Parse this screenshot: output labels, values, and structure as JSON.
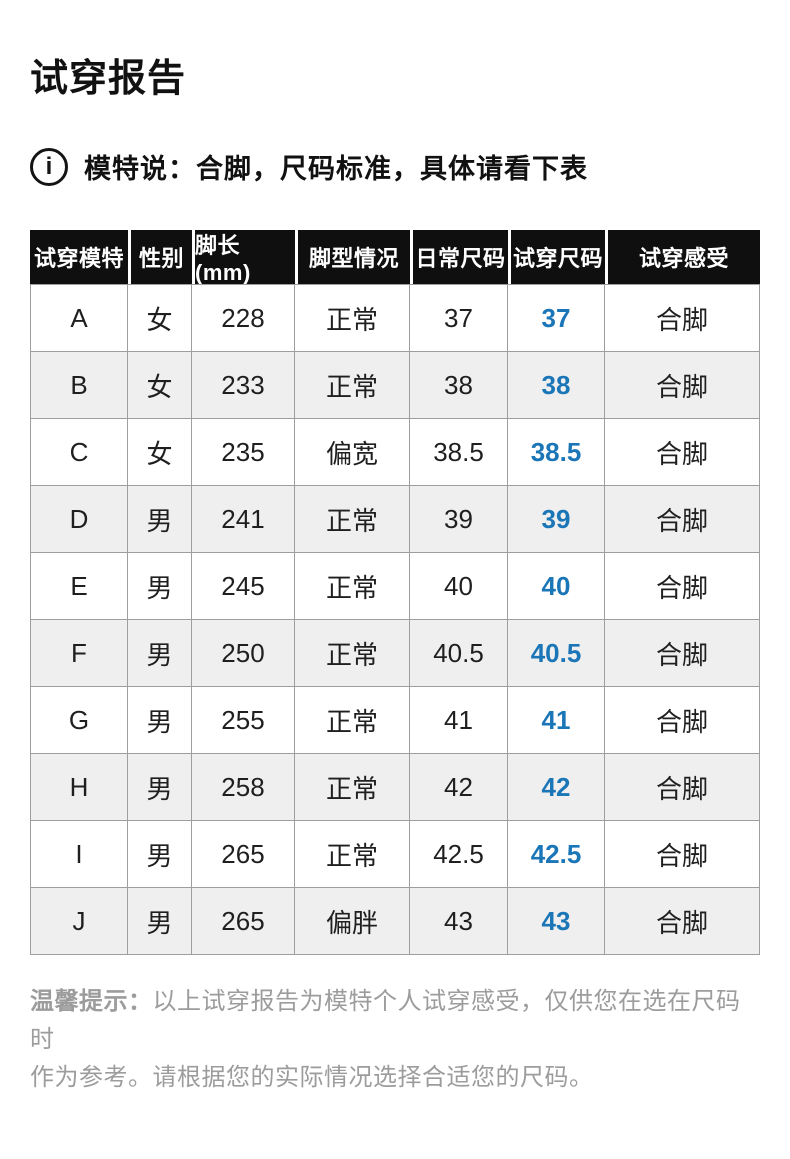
{
  "title": "试穿报告",
  "notice": {
    "icon": "info-icon",
    "icon_glyph": "i",
    "text": "模特说：合脚，尺码标准，具体请看下表"
  },
  "table": {
    "header_bg": "#0f0f0f",
    "alt_row_bg": "#efefef",
    "border_color": "#9e9e9e",
    "tried_size_color": "#1b76b8",
    "columns": [
      "试穿模特",
      "性别",
      "脚长(mm)",
      "脚型情况",
      "日常尺码",
      "试穿尺码",
      "试穿感受"
    ],
    "rows": [
      {
        "model": "A",
        "gender": "女",
        "foot_length": "228",
        "foot_type": "正常",
        "usual_size": "37",
        "tried_size": "37",
        "feeling": "合脚"
      },
      {
        "model": "B",
        "gender": "女",
        "foot_length": "233",
        "foot_type": "正常",
        "usual_size": "38",
        "tried_size": "38",
        "feeling": "合脚"
      },
      {
        "model": "C",
        "gender": "女",
        "foot_length": "235",
        "foot_type": "偏宽",
        "usual_size": "38.5",
        "tried_size": "38.5",
        "feeling": "合脚"
      },
      {
        "model": "D",
        "gender": "男",
        "foot_length": "241",
        "foot_type": "正常",
        "usual_size": "39",
        "tried_size": "39",
        "feeling": "合脚"
      },
      {
        "model": "E",
        "gender": "男",
        "foot_length": "245",
        "foot_type": "正常",
        "usual_size": "40",
        "tried_size": "40",
        "feeling": "合脚"
      },
      {
        "model": "F",
        "gender": "男",
        "foot_length": "250",
        "foot_type": "正常",
        "usual_size": "40.5",
        "tried_size": "40.5",
        "feeling": "合脚"
      },
      {
        "model": "G",
        "gender": "男",
        "foot_length": "255",
        "foot_type": "正常",
        "usual_size": "41",
        "tried_size": "41",
        "feeling": "合脚"
      },
      {
        "model": "H",
        "gender": "男",
        "foot_length": "258",
        "foot_type": "正常",
        "usual_size": "42",
        "tried_size": "42",
        "feeling": "合脚"
      },
      {
        "model": "I",
        "gender": "男",
        "foot_length": "265",
        "foot_type": "正常",
        "usual_size": "42.5",
        "tried_size": "42.5",
        "feeling": "合脚"
      },
      {
        "model": "J",
        "gender": "男",
        "foot_length": "265",
        "foot_type": "偏胖",
        "usual_size": "43",
        "tried_size": "43",
        "feeling": "合脚"
      }
    ]
  },
  "note": {
    "prefix": "温馨提示：",
    "line1": "以上试穿报告为模特个人试穿感受，仅供您在选在尺码时",
    "line2": "作为参考。请根据您的实际情况选择合适您的尺码。"
  }
}
